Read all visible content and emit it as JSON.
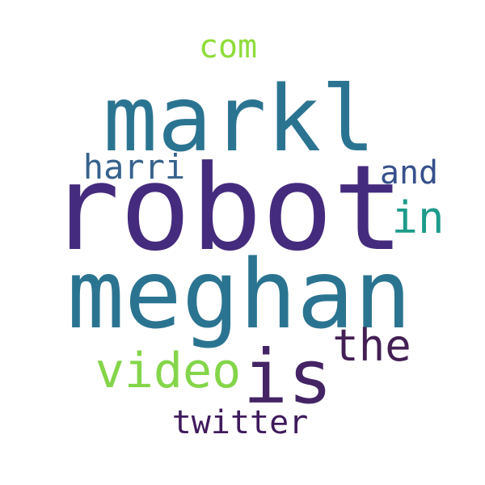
{
  "word_cloud": {
    "background_color": "#ffffff",
    "words": [
      {
        "text": "markl",
        "color": "#2b7491"
      },
      {
        "text": "robot",
        "color": "#452b7d"
      },
      {
        "text": "meghan",
        "color": "#2b7491"
      },
      {
        "text": "com",
        "color": "#8fdc3a"
      },
      {
        "text": "harri",
        "color": "#36628c"
      },
      {
        "text": "and",
        "color": "#36508b"
      },
      {
        "text": "in",
        "color": "#1e9b8a"
      },
      {
        "text": "the",
        "color": "#431f55"
      },
      {
        "text": "video",
        "color": "#84d54a"
      },
      {
        "text": "is",
        "color": "#442465"
      },
      {
        "text": "twitter",
        "color": "#3f1a5c"
      }
    ]
  }
}
